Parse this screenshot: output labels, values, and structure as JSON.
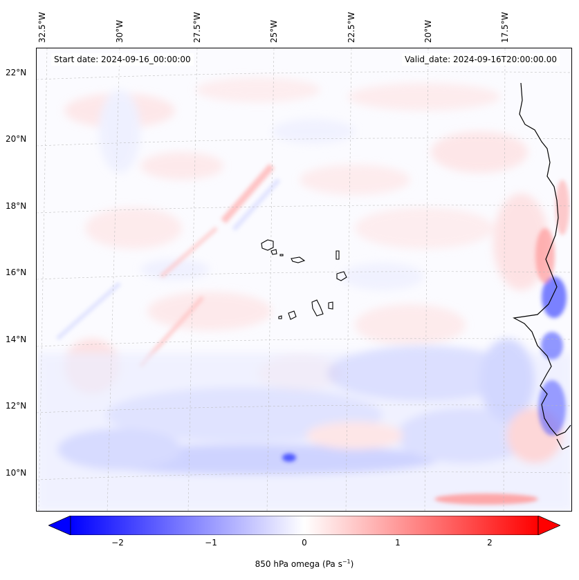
{
  "map": {
    "start_label": "Start date: 2024-09-16_00:00:00",
    "valid_label": "Valid_date: 2024-09-16T20:00:00.00",
    "lon_labels": [
      "32.5°W",
      "30°W",
      "27.5°W",
      "25°W",
      "22.5°W",
      "20°W",
      "17.5°W"
    ],
    "lat_labels": [
      "22°N",
      "20°N",
      "18°N",
      "16°N",
      "14°N",
      "12°N",
      "10°N"
    ],
    "extent": {
      "lon_min": -32.8,
      "lon_max": -15.3,
      "lat_min": 8.9,
      "lat_max": 22.8
    },
    "field": "850 hPa omega",
    "projection_grid": "dashed gray graticule",
    "features": [
      "West African coastline",
      "Cape Verde islands"
    ]
  },
  "colorbar": {
    "ticks": [
      "−2",
      "−1",
      "0",
      "1",
      "2"
    ],
    "tick_values": [
      -2,
      -1,
      0,
      1,
      2
    ],
    "range": [
      -2.5,
      2.5
    ],
    "label_main": "850 hPa omega (Pa s",
    "label_exp": "−1",
    "label_close": ")",
    "cmap": "bwr",
    "colors": {
      "min": "#0000ff",
      "mid": "#ffffff",
      "max": "#ff0000"
    },
    "extend": "both"
  }
}
